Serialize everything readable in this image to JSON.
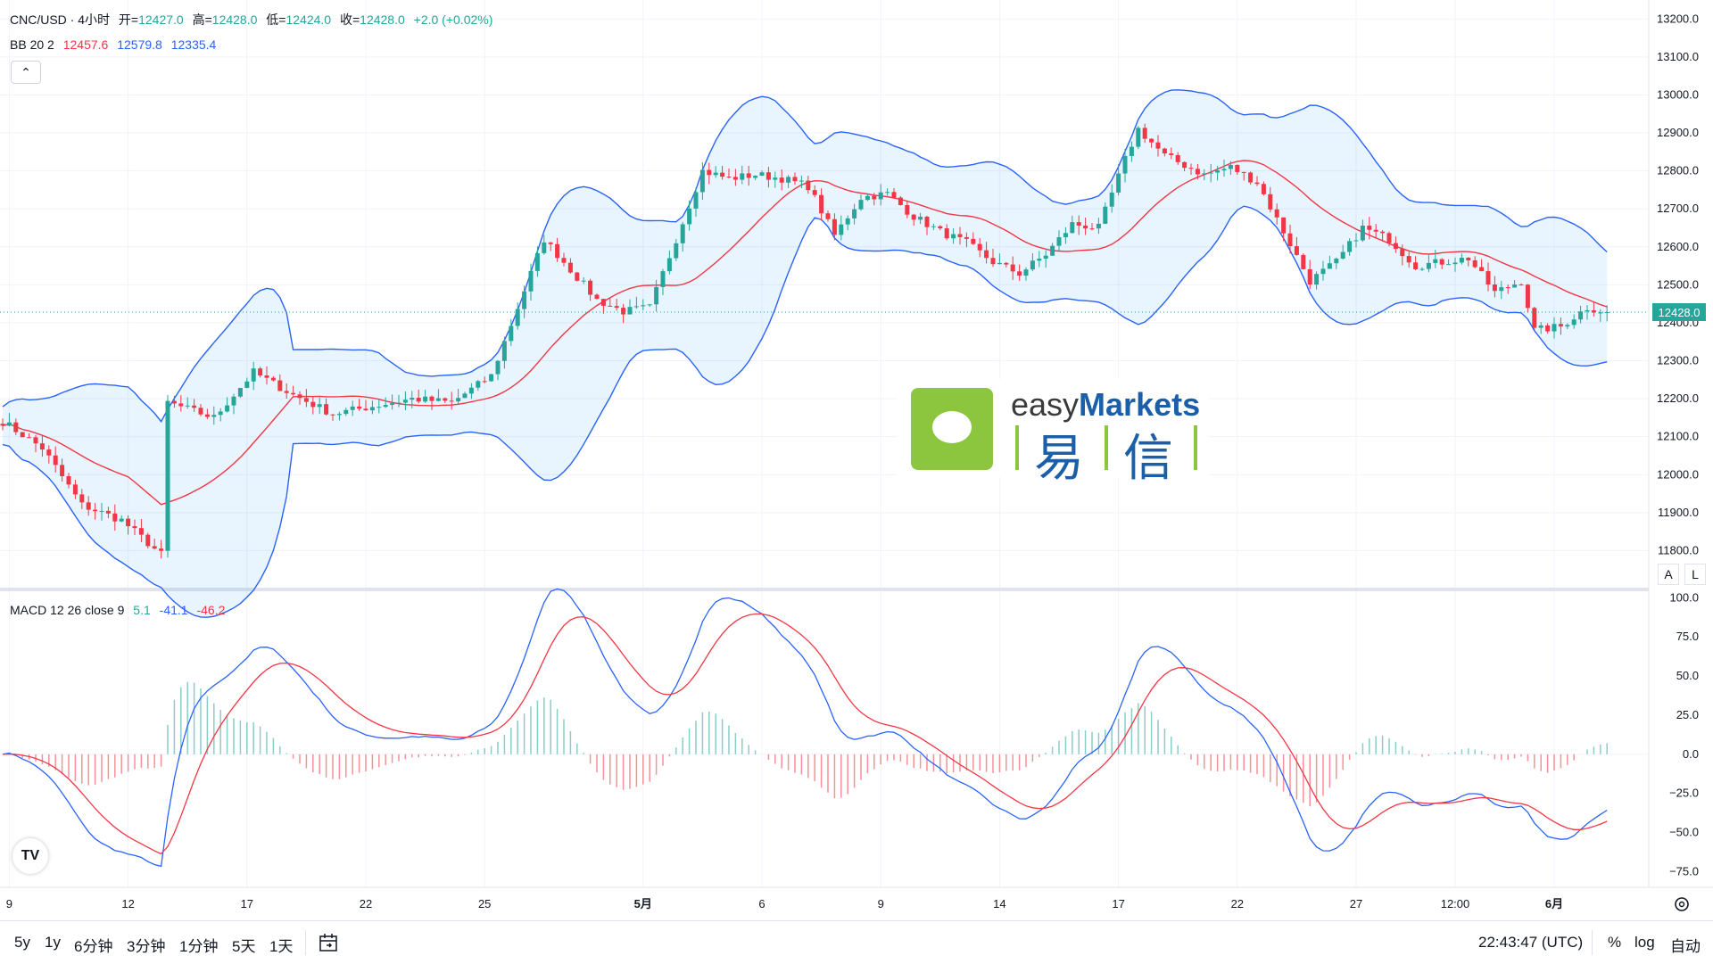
{
  "header": {
    "symbol": "CNC/USD · 4小时",
    "open_label": "开=",
    "open": "12427.0",
    "high_label": "高=",
    "high": "12428.0",
    "low_label": "低=",
    "low": "12424.0",
    "close_label": "收=",
    "close": "12428.0",
    "change": "+2.0 (+0.02%)"
  },
  "bb": {
    "label": "BB 20 2",
    "basis": "12457.6",
    "upper": "12579.8",
    "lower": "12335.4"
  },
  "macd": {
    "label": "MACD 12 26 close 9",
    "hist": "5.1",
    "macd": "-41.1",
    "signal": "-46.2"
  },
  "collapse_glyph": "⌃",
  "price_axis_ticks": [
    13200,
    13100,
    13000,
    12900,
    12800,
    12700,
    12600,
    12500,
    12400,
    12300,
    12200,
    12100,
    12000,
    11900,
    11800
  ],
  "current_price": "12428.0",
  "macd_axis_ticks": [
    "100.0",
    "75.0",
    "50.0",
    "25.0",
    "0.0",
    "−25.0",
    "−50.0",
    "−75.0"
  ],
  "time_axis": [
    {
      "label": "9",
      "idx": 1
    },
    {
      "label": "12",
      "idx": 19
    },
    {
      "label": "17",
      "idx": 37
    },
    {
      "label": "22",
      "idx": 55
    },
    {
      "label": "25",
      "idx": 73
    },
    {
      "label": "5月",
      "idx": 97,
      "bold": true
    },
    {
      "label": "6",
      "idx": 115
    },
    {
      "label": "9",
      "idx": 133
    },
    {
      "label": "14",
      "idx": 151
    },
    {
      "label": "17",
      "idx": 169
    },
    {
      "label": "22",
      "idx": 187
    },
    {
      "label": "27",
      "idx": 205
    },
    {
      "label": "12:00",
      "idx": 220
    },
    {
      "label": "6月",
      "idx": 235,
      "bold": true
    }
  ],
  "axis_buttons": {
    "auto": "A",
    "log": "L"
  },
  "bottom": {
    "timeframes": [
      "5y",
      "1y",
      "6分钟",
      "3分钟",
      "1分钟",
      "5天",
      "1天"
    ],
    "clock": "22:43:47 (UTC)",
    "percent": "%",
    "log": "log",
    "auto": "自动"
  },
  "tv_logo": "TV",
  "watermark": {
    "brand_en_light": "easy",
    "brand_en_bold": "Markets",
    "brand_cn_1": "易",
    "brand_cn_2": "信"
  },
  "colors": {
    "up": "#26a69a",
    "down": "#f23645",
    "bb_band": "#2962ff",
    "bb_basis": "#f23645",
    "macd_line": "#2962ff",
    "signal_line": "#f23645",
    "brand_green": "#8cc63f",
    "brand_blue": "#1a5fa8"
  },
  "chart_data": {
    "type": "candlestick",
    "y_range": [
      11700,
      13250
    ],
    "macd_range": [
      -85,
      103
    ],
    "anchors": [
      [
        0,
        12140
      ],
      [
        6,
        12070
      ],
      [
        12,
        11920
      ],
      [
        18,
        11880
      ],
      [
        24,
        11790
      ],
      [
        25,
        12190
      ],
      [
        32,
        12150
      ],
      [
        38,
        12270
      ],
      [
        44,
        12210
      ],
      [
        50,
        12160
      ],
      [
        56,
        12180
      ],
      [
        62,
        12200
      ],
      [
        68,
        12190
      ],
      [
        74,
        12260
      ],
      [
        78,
        12440
      ],
      [
        82,
        12620
      ],
      [
        86,
        12540
      ],
      [
        90,
        12460
      ],
      [
        94,
        12430
      ],
      [
        98,
        12440
      ],
      [
        102,
        12620
      ],
      [
        106,
        12800
      ],
      [
        110,
        12780
      ],
      [
        114,
        12790
      ],
      [
        118,
        12780
      ],
      [
        122,
        12760
      ],
      [
        126,
        12630
      ],
      [
        130,
        12730
      ],
      [
        134,
        12740
      ],
      [
        138,
        12680
      ],
      [
        142,
        12640
      ],
      [
        146,
        12610
      ],
      [
        150,
        12560
      ],
      [
        154,
        12530
      ],
      [
        158,
        12580
      ],
      [
        162,
        12660
      ],
      [
        166,
        12650
      ],
      [
        170,
        12830
      ],
      [
        172,
        12910
      ],
      [
        176,
        12840
      ],
      [
        182,
        12790
      ],
      [
        186,
        12810
      ],
      [
        190,
        12770
      ],
      [
        194,
        12640
      ],
      [
        198,
        12510
      ],
      [
        202,
        12560
      ],
      [
        206,
        12650
      ],
      [
        210,
        12620
      ],
      [
        214,
        12550
      ],
      [
        218,
        12560
      ],
      [
        222,
        12570
      ],
      [
        226,
        12480
      ],
      [
        230,
        12510
      ],
      [
        232,
        12380
      ],
      [
        236,
        12390
      ],
      [
        240,
        12440
      ],
      [
        243,
        12428
      ]
    ]
  }
}
